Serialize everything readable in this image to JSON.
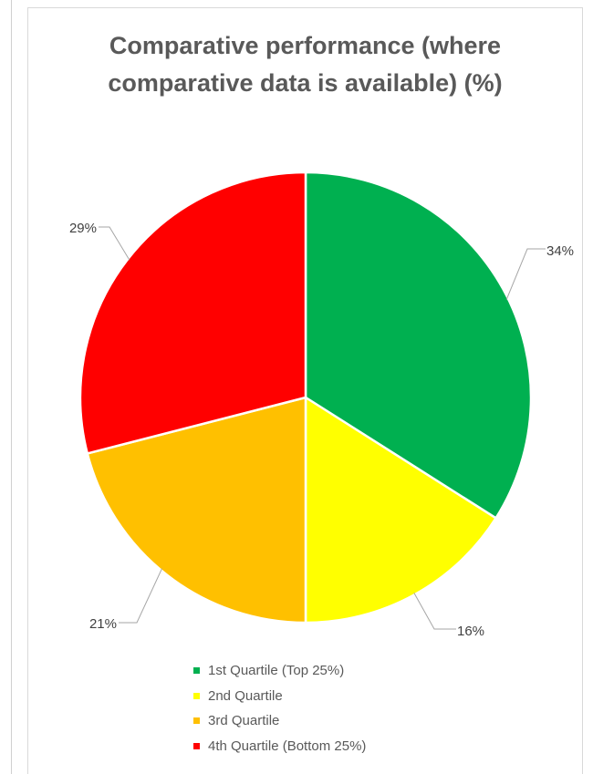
{
  "chart_data": {
    "type": "pie",
    "title_lines": [
      "Comparative performance (where",
      "comparative data is available) (%)"
    ],
    "slices": [
      {
        "label": "1st Quartile (Top 25%)",
        "value": 34,
        "color": "#00B050",
        "data_label": "34%"
      },
      {
        "label": "2nd Quartile",
        "value": 16,
        "color": "#FFFF00",
        "data_label": "16%"
      },
      {
        "label": "3rd Quartile",
        "value": 21,
        "color": "#FFC000",
        "data_label": "21%"
      },
      {
        "label": "4th Quartile (Bottom 25%)",
        "value": 29,
        "color": "#FF0000",
        "data_label": "29%"
      }
    ],
    "start_angle": "12 o'clock",
    "direction": "clockwise",
    "legend_position": "bottom"
  }
}
